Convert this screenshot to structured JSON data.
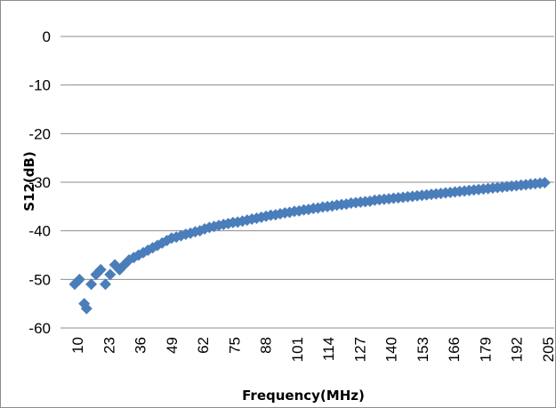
{
  "chart_data": {
    "type": "scatter",
    "title": "",
    "xlabel": "Frequency(MHz)",
    "ylabel": "S12(dB)",
    "x_tick_labels": [
      "10",
      "23",
      "36",
      "49",
      "62",
      "75",
      "88",
      "101",
      "114",
      "127",
      "140",
      "153",
      "166",
      "179",
      "192",
      "205"
    ],
    "y_tick_labels": [
      "0",
      "-10",
      "-20",
      "-30",
      "-40",
      "-50",
      "-60"
    ],
    "y_ticks": [
      0,
      -10,
      -20,
      -30,
      -40,
      -50,
      -60
    ],
    "ylim": [
      -60,
      0
    ],
    "xlim": [
      10,
      210
    ],
    "grid": "horizontal",
    "legend": "none",
    "marker": "diamond",
    "series": [
      {
        "color": "#4a7ebb",
        "points": [
          [
            10,
            -51
          ],
          [
            12,
            -50
          ],
          [
            14,
            -55
          ],
          [
            15,
            -56
          ],
          [
            17,
            -51
          ],
          [
            19,
            -49
          ],
          [
            21,
            -48
          ],
          [
            23,
            -51
          ],
          [
            25,
            -49
          ],
          [
            27,
            -47
          ],
          [
            29,
            -48
          ],
          [
            31,
            -47
          ],
          [
            33,
            -46
          ],
          [
            35,
            -45.5
          ],
          [
            37,
            -45
          ],
          [
            39,
            -44.5
          ],
          [
            41,
            -44
          ],
          [
            43,
            -43.5
          ],
          [
            45,
            -43
          ],
          [
            47,
            -42.5
          ],
          [
            49,
            -42
          ],
          [
            51,
            -41.5
          ],
          [
            53,
            -41.3
          ],
          [
            55,
            -41
          ],
          [
            57,
            -40.7
          ],
          [
            59,
            -40.5
          ],
          [
            61,
            -40.2
          ],
          [
            63,
            -40
          ],
          [
            65,
            -39.6
          ],
          [
            67,
            -39.3
          ],
          [
            69,
            -39.1
          ],
          [
            71,
            -38.9
          ],
          [
            73,
            -38.7
          ],
          [
            75,
            -38.5
          ],
          [
            77,
            -38.3
          ],
          [
            79,
            -38.2
          ],
          [
            81,
            -38
          ],
          [
            83,
            -37.8
          ],
          [
            85,
            -37.6
          ],
          [
            87,
            -37.4
          ],
          [
            89,
            -37.2
          ],
          [
            91,
            -37
          ],
          [
            93,
            -36.8
          ],
          [
            95,
            -36.7
          ],
          [
            97,
            -36.5
          ],
          [
            99,
            -36.3
          ],
          [
            101,
            -36.2
          ],
          [
            103,
            -36
          ],
          [
            105,
            -35.9
          ],
          [
            107,
            -35.7
          ],
          [
            109,
            -35.6
          ],
          [
            111,
            -35.4
          ],
          [
            113,
            -35.3
          ],
          [
            115,
            -35.1
          ],
          [
            117,
            -35
          ],
          [
            119,
            -34.9
          ],
          [
            121,
            -34.7
          ],
          [
            123,
            -34.6
          ],
          [
            125,
            -34.5
          ],
          [
            127,
            -34.3
          ],
          [
            129,
            -34.2
          ],
          [
            131,
            -34.1
          ],
          [
            133,
            -34
          ],
          [
            135,
            -33.9
          ],
          [
            137,
            -33.7
          ],
          [
            139,
            -33.6
          ],
          [
            141,
            -33.5
          ],
          [
            143,
            -33.4
          ],
          [
            145,
            -33.3
          ],
          [
            147,
            -33.2
          ],
          [
            149,
            -33.1
          ],
          [
            151,
            -33
          ],
          [
            153,
            -32.9
          ],
          [
            155,
            -32.8
          ],
          [
            157,
            -32.7
          ],
          [
            159,
            -32.6
          ],
          [
            161,
            -32.5
          ],
          [
            163,
            -32.4
          ],
          [
            165,
            -32.3
          ],
          [
            167,
            -32.2
          ],
          [
            169,
            -32.1
          ],
          [
            171,
            -32
          ],
          [
            173,
            -31.9
          ],
          [
            175,
            -31.8
          ],
          [
            177,
            -31.7
          ],
          [
            179,
            -31.6
          ],
          [
            181,
            -31.5
          ],
          [
            183,
            -31.4
          ],
          [
            185,
            -31.3
          ],
          [
            187,
            -31.2
          ],
          [
            189,
            -31.1
          ],
          [
            191,
            -31
          ],
          [
            193,
            -30.9
          ],
          [
            195,
            -30.8
          ],
          [
            197,
            -30.7
          ],
          [
            199,
            -30.6
          ],
          [
            201,
            -30.5
          ],
          [
            203,
            -30.4
          ],
          [
            205,
            -30.3
          ],
          [
            207,
            -30.2
          ],
          [
            209,
            -30.1
          ]
        ]
      }
    ]
  }
}
